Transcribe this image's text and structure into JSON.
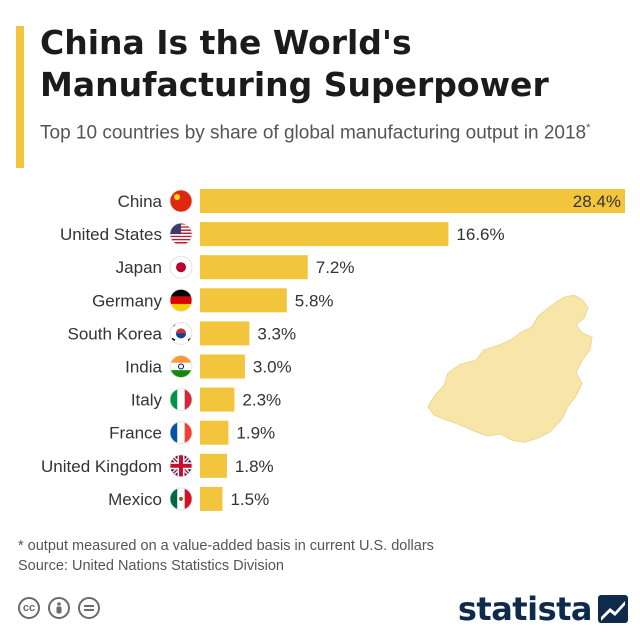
{
  "header": {
    "title": "China Is the World's Manufacturing Superpower",
    "subtitle": "Top 10 countries by share of global manufacturing output in 2018",
    "subtitle_mark": "*"
  },
  "chart_data": {
    "type": "bar",
    "orientation": "horizontal",
    "categories": [
      "China",
      "United States",
      "Japan",
      "Germany",
      "South Korea",
      "India",
      "Italy",
      "France",
      "United Kingdom",
      "Mexico"
    ],
    "values": [
      28.4,
      16.6,
      7.2,
      5.8,
      3.3,
      3.0,
      2.3,
      1.9,
      1.8,
      1.5
    ],
    "value_labels": [
      "28.4%",
      "16.6%",
      "7.2%",
      "5.8%",
      "3.3%",
      "3.0%",
      "2.3%",
      "1.9%",
      "1.8%",
      "1.5%"
    ],
    "flags": [
      "china-flag-icon",
      "usa-flag-icon",
      "japan-flag-icon",
      "germany-flag-icon",
      "south-korea-flag-icon",
      "india-flag-icon",
      "italy-flag-icon",
      "france-flag-icon",
      "uk-flag-icon",
      "mexico-flag-icon"
    ],
    "xlim": [
      0,
      28.4
    ],
    "bar_color": "#f2c53d",
    "decoration": "china-map-silhouette"
  },
  "footer": {
    "note": "* output measured on a value-added basis in current U.S. dollars",
    "source": "Source: United Nations Statistics Division",
    "license_icons": [
      "cc-icon",
      "by-icon",
      "nd-icon"
    ],
    "brand": "statista"
  },
  "colors": {
    "accent": "#f2c53d",
    "map": "#f8e5a8",
    "brand": "#0f2a4a"
  }
}
